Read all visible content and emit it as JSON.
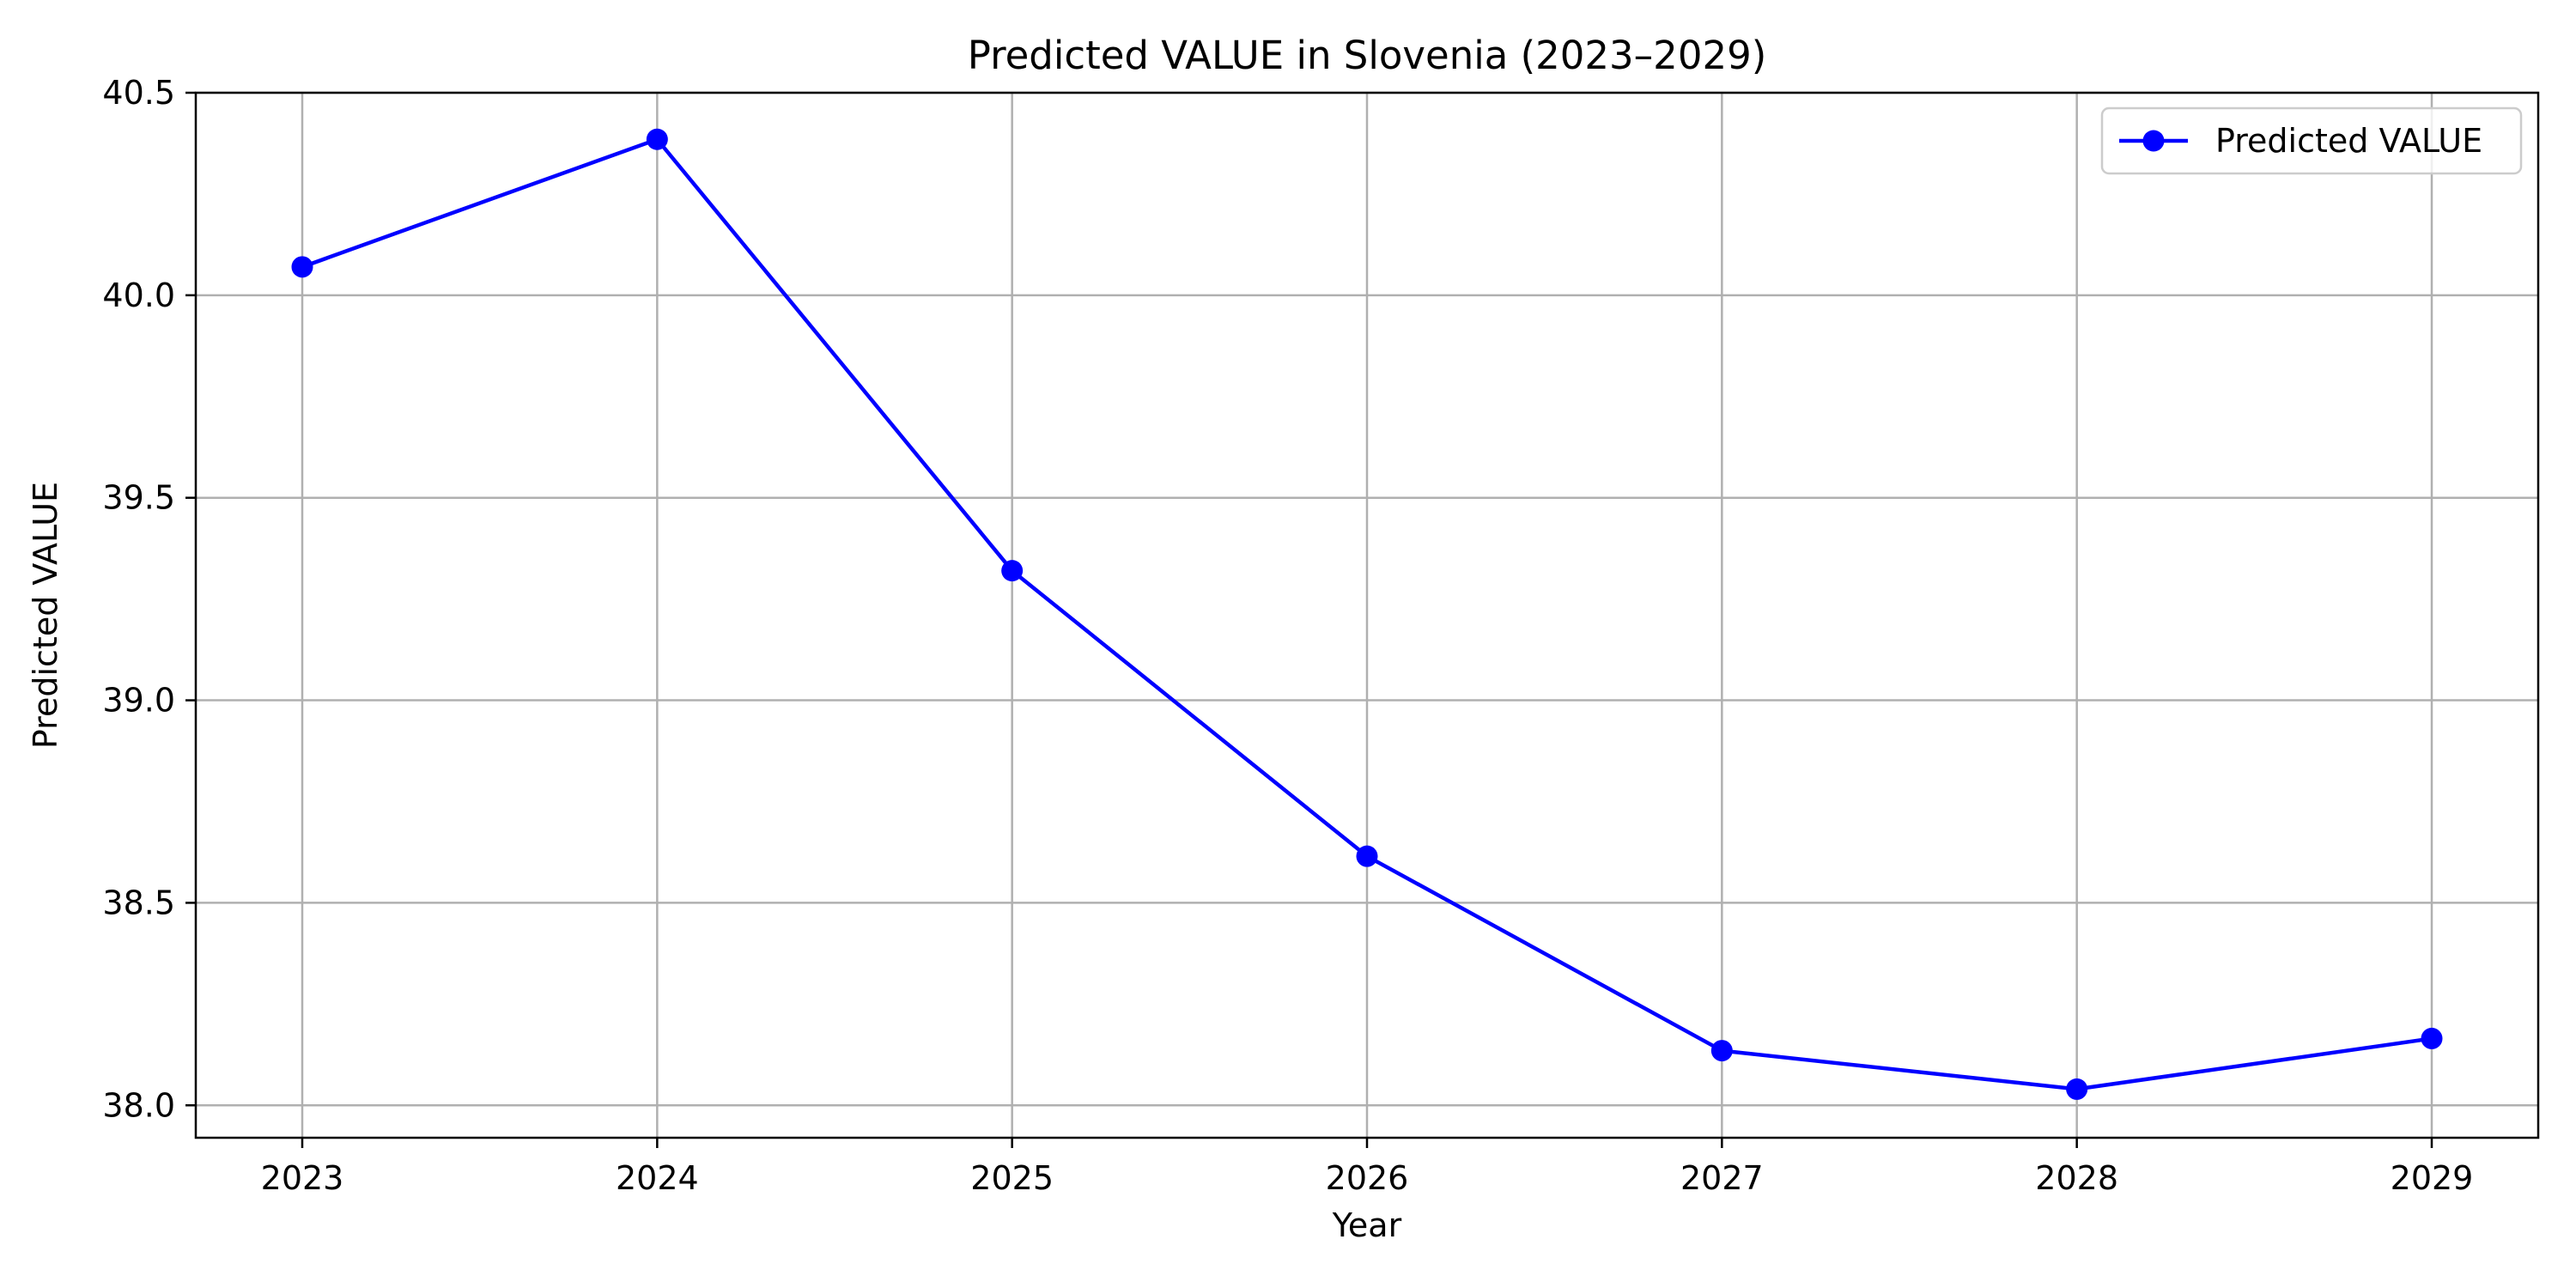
{
  "chart_data": {
    "type": "line",
    "title": "Predicted VALUE in Slovenia (2023–2029)",
    "xlabel": "Year",
    "ylabel": "Predicted VALUE",
    "x": [
      2023,
      2024,
      2025,
      2026,
      2027,
      2028,
      2029
    ],
    "xticks": [
      "2023",
      "2024",
      "2025",
      "2026",
      "2027",
      "2028",
      "2029"
    ],
    "xlim": [
      2022.7,
      2029.3
    ],
    "ylim": [
      37.92,
      40.5
    ],
    "yticks": [
      38.0,
      38.5,
      39.0,
      39.5,
      40.0,
      40.5
    ],
    "ytick_labels": [
      "38.0",
      "38.5",
      "39.0",
      "39.5",
      "40.0",
      "40.5"
    ],
    "grid": true,
    "legend_position": "top-right",
    "series": [
      {
        "name": "Predicted VALUE",
        "color": "#0000ff",
        "marker": "circle",
        "values": [
          40.07,
          40.385,
          39.32,
          38.615,
          38.135,
          38.04,
          38.165
        ]
      }
    ]
  }
}
